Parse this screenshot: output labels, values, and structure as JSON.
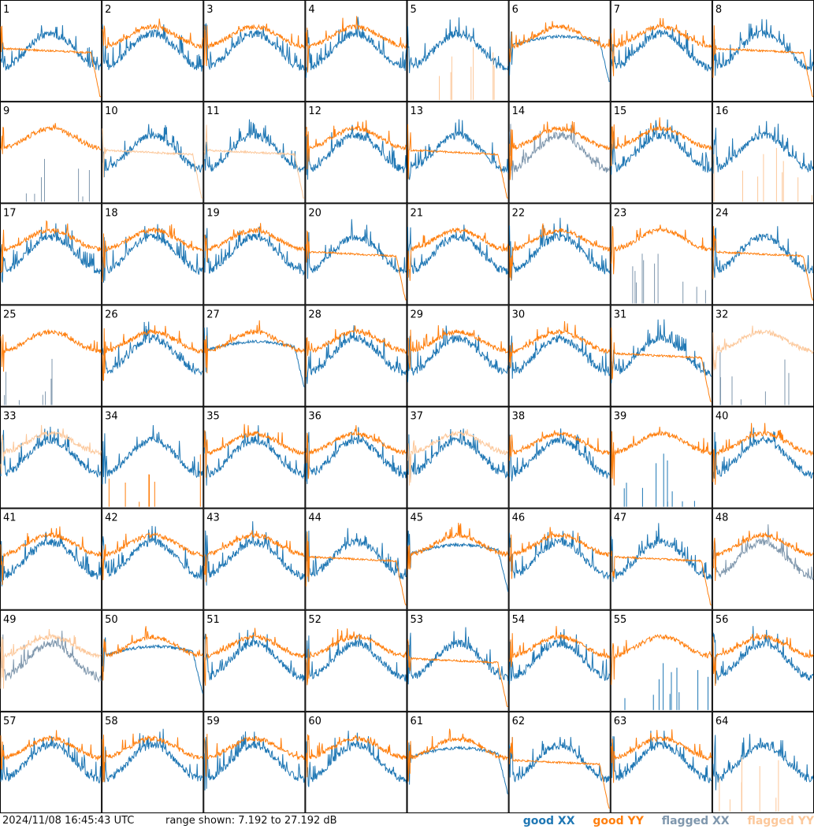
{
  "footer": {
    "timestamp": "2024/11/08 16:45:43 UTC",
    "range_text": "range shown: 7.192 to 27.192 dB"
  },
  "legend": {
    "good_xx": "good XX",
    "good_yy": "good YY",
    "flagged_xx": "flagged XX",
    "flagged_yy": "flagged YY"
  },
  "colors": {
    "good_xx": "#1f77b4",
    "good_yy": "#ff7f0e",
    "flagged_xx": "#7f97ad",
    "flagged_yy": "#fcc89b"
  },
  "chart_data": {
    "type": "line",
    "layout": "8x8 grid of antenna spectra",
    "ylim": [
      7.192,
      27.192
    ],
    "yunit": "dB",
    "panels": [
      {
        "id": "1",
        "xx": "good",
        "yy": "good",
        "shape": "yy_droop"
      },
      {
        "id": "2",
        "xx": "good",
        "yy": "good",
        "shape": "normal"
      },
      {
        "id": "3",
        "xx": "good",
        "yy": "good",
        "shape": "normal"
      },
      {
        "id": "4",
        "xx": "good",
        "yy": "good",
        "shape": "normal"
      },
      {
        "id": "5",
        "xx": "good",
        "yy": "flagged",
        "shape": "yy_spikes"
      },
      {
        "id": "6",
        "xx": "good",
        "yy": "good",
        "shape": "xx_droop"
      },
      {
        "id": "7",
        "xx": "good",
        "yy": "good",
        "shape": "normal"
      },
      {
        "id": "8",
        "xx": "good",
        "yy": "good",
        "shape": "yy_droop"
      },
      {
        "id": "9",
        "xx": "flagged",
        "yy": "good",
        "shape": "xx_spikes"
      },
      {
        "id": "10",
        "xx": "good",
        "yy": "flagged",
        "shape": "yy_flat_low"
      },
      {
        "id": "11",
        "xx": "good",
        "yy": "flagged",
        "shape": "yy_flat_low"
      },
      {
        "id": "12",
        "xx": "good",
        "yy": "good",
        "shape": "normal"
      },
      {
        "id": "13",
        "xx": "good",
        "yy": "good",
        "shape": "yy_droop"
      },
      {
        "id": "14",
        "xx": "flagged",
        "yy": "good",
        "shape": "normal"
      },
      {
        "id": "15",
        "xx": "good",
        "yy": "good",
        "shape": "normal"
      },
      {
        "id": "16",
        "xx": "good",
        "yy": "flagged",
        "shape": "yy_spikes"
      },
      {
        "id": "17",
        "xx": "good",
        "yy": "good",
        "shape": "normal"
      },
      {
        "id": "18",
        "xx": "good",
        "yy": "good",
        "shape": "normal"
      },
      {
        "id": "19",
        "xx": "good",
        "yy": "good",
        "shape": "normal"
      },
      {
        "id": "20",
        "xx": "good",
        "yy": "good",
        "shape": "yy_flat_low"
      },
      {
        "id": "21",
        "xx": "good",
        "yy": "good",
        "shape": "normal"
      },
      {
        "id": "22",
        "xx": "good",
        "yy": "good",
        "shape": "normal"
      },
      {
        "id": "23",
        "xx": "flagged",
        "yy": "good",
        "shape": "xx_spikes"
      },
      {
        "id": "24",
        "xx": "good",
        "yy": "good",
        "shape": "yy_flat_low"
      },
      {
        "id": "25",
        "xx": "flagged",
        "yy": "good",
        "shape": "xx_spikes"
      },
      {
        "id": "26",
        "xx": "good",
        "yy": "good",
        "shape": "normal"
      },
      {
        "id": "27",
        "xx": "good",
        "yy": "good",
        "shape": "xx_droop"
      },
      {
        "id": "28",
        "xx": "good",
        "yy": "good",
        "shape": "normal"
      },
      {
        "id": "29",
        "xx": "good",
        "yy": "good",
        "shape": "normal"
      },
      {
        "id": "30",
        "xx": "good",
        "yy": "good",
        "shape": "normal"
      },
      {
        "id": "31",
        "xx": "good",
        "yy": "good",
        "shape": "yy_flat_low"
      },
      {
        "id": "32",
        "xx": "flagged",
        "yy": "flagged",
        "shape": "xx_spikes"
      },
      {
        "id": "33",
        "xx": "good",
        "yy": "flagged",
        "shape": "normal"
      },
      {
        "id": "34",
        "xx": "good",
        "yy": "good",
        "shape": "yy_spikes"
      },
      {
        "id": "35",
        "xx": "good",
        "yy": "good",
        "shape": "normal"
      },
      {
        "id": "36",
        "xx": "good",
        "yy": "good",
        "shape": "normal"
      },
      {
        "id": "37",
        "xx": "good",
        "yy": "flagged",
        "shape": "normal"
      },
      {
        "id": "38",
        "xx": "good",
        "yy": "good",
        "shape": "normal"
      },
      {
        "id": "39",
        "xx": "good",
        "yy": "good",
        "shape": "xx_spikes"
      },
      {
        "id": "40",
        "xx": "good",
        "yy": "good",
        "shape": "normal"
      },
      {
        "id": "41",
        "xx": "good",
        "yy": "good",
        "shape": "normal"
      },
      {
        "id": "42",
        "xx": "good",
        "yy": "good",
        "shape": "normal"
      },
      {
        "id": "43",
        "xx": "good",
        "yy": "good",
        "shape": "normal"
      },
      {
        "id": "44",
        "xx": "good",
        "yy": "good",
        "shape": "yy_flat_low"
      },
      {
        "id": "45",
        "xx": "good",
        "yy": "good",
        "shape": "xx_droop"
      },
      {
        "id": "46",
        "xx": "good",
        "yy": "good",
        "shape": "normal"
      },
      {
        "id": "47",
        "xx": "good",
        "yy": "good",
        "shape": "yy_flat_low"
      },
      {
        "id": "48",
        "xx": "flagged",
        "yy": "good",
        "shape": "normal"
      },
      {
        "id": "49",
        "xx": "flagged",
        "yy": "flagged",
        "shape": "normal"
      },
      {
        "id": "50",
        "xx": "good",
        "yy": "good",
        "shape": "xx_droop"
      },
      {
        "id": "51",
        "xx": "good",
        "yy": "good",
        "shape": "normal"
      },
      {
        "id": "52",
        "xx": "good",
        "yy": "good",
        "shape": "normal"
      },
      {
        "id": "53",
        "xx": "good",
        "yy": "good",
        "shape": "yy_droop"
      },
      {
        "id": "54",
        "xx": "good",
        "yy": "good",
        "shape": "normal"
      },
      {
        "id": "55",
        "xx": "good",
        "yy": "good",
        "shape": "xx_spikes"
      },
      {
        "id": "56",
        "xx": "good",
        "yy": "good",
        "shape": "normal"
      },
      {
        "id": "57",
        "xx": "good",
        "yy": "good",
        "shape": "normal"
      },
      {
        "id": "58",
        "xx": "good",
        "yy": "good",
        "shape": "normal"
      },
      {
        "id": "59",
        "xx": "good",
        "yy": "good",
        "shape": "normal"
      },
      {
        "id": "60",
        "xx": "good",
        "yy": "good",
        "shape": "normal"
      },
      {
        "id": "61",
        "xx": "good",
        "yy": "good",
        "shape": "xx_droop"
      },
      {
        "id": "62",
        "xx": "good",
        "yy": "good",
        "shape": "yy_droop"
      },
      {
        "id": "63",
        "xx": "good",
        "yy": "good",
        "shape": "normal"
      },
      {
        "id": "64",
        "xx": "good",
        "yy": "flagged",
        "shape": "yy_spikes"
      }
    ]
  }
}
